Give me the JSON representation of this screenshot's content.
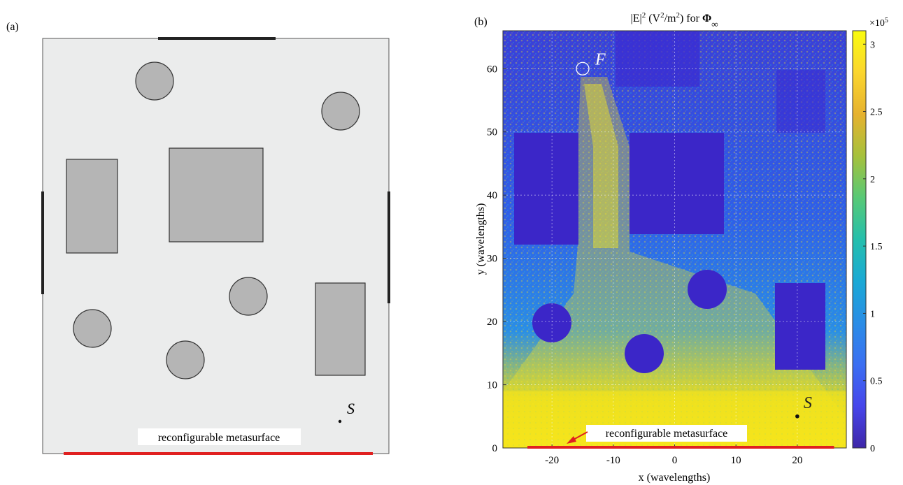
{
  "panel_a": {
    "label": "(a)",
    "source_label": "S",
    "metasurface_label": "reconfigurable metasurface",
    "colors": {
      "room": "#ebecec",
      "obstacle": "#b5b5b5",
      "edge": "#333333",
      "metasurface": "#e02020",
      "wall_segment": "#222222"
    }
  },
  "panel_b": {
    "label": "(b)",
    "title_prefix": "|E|",
    "title_exponent": "2",
    "title_unit_open": " (V",
    "title_unit_exponent": "2",
    "title_unit_close": "/m",
    "title_unit_exponent2": "2",
    "title_unit_end": ") for ",
    "title_symbol": "Φ",
    "title_subscript": "∞",
    "focus_label": "F",
    "source_label": "S",
    "metasurface_label": "reconfigurable metasurface",
    "colorbar_multiplier": "×10",
    "colorbar_exponent": "5",
    "colors": {
      "field_low": "#3a1fd0",
      "field_mid": "#1f7be8",
      "field_high": "#f6e51c",
      "metasurface": "#e02020"
    }
  },
  "chart_data": {
    "type": "heatmap",
    "title": "|E|^2 (V^2/m^2) for Φ∞",
    "xlabel": "x (wavelengths)",
    "ylabel": "y (wavelengths)",
    "xlim": [
      -28,
      28
    ],
    "ylim": [
      0,
      66
    ],
    "xticks": [
      -20,
      -10,
      0,
      10,
      20
    ],
    "xtick_labels": [
      "-20",
      "-10",
      "0",
      "10",
      "20"
    ],
    "yticks": [
      0,
      10,
      20,
      30,
      40,
      50,
      60
    ],
    "ytick_labels": [
      "0",
      "10",
      "20",
      "30",
      "40",
      "50",
      "60"
    ],
    "grid": true,
    "colorbar": {
      "min": 0,
      "max": 3.1,
      "ticks": [
        0,
        0.5,
        1,
        1.5,
        2,
        2.5,
        3
      ],
      "tick_labels": [
        "0",
        "0.5",
        "1",
        "1.5",
        "2",
        "2.5",
        "3"
      ],
      "colormap": [
        "#3e26a8",
        "#4746eb",
        "#3b6ff2",
        "#2a8de6",
        "#1aa9d5",
        "#25bfac",
        "#58c976",
        "#a6c13c",
        "#e6b22f",
        "#fbd62e",
        "#f9fb0e"
      ]
    },
    "focus_point": {
      "x": -15,
      "y": 60
    },
    "source_point": {
      "x": 20,
      "y": 5
    },
    "metasurface_span": {
      "x_start": -24,
      "x_end": 26,
      "y": 0
    }
  }
}
